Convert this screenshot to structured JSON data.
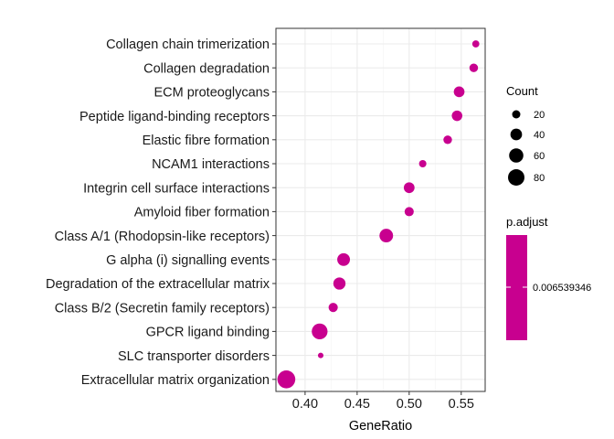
{
  "chart_data": {
    "type": "scatter",
    "title": "",
    "xlabel": "GeneRatio",
    "ylabel": "",
    "xlim": [
      0.372,
      0.573
    ],
    "x_ticks": [
      0.4,
      0.45,
      0.5,
      0.55
    ],
    "x_tick_labels": [
      "0.40",
      "0.45",
      "0.50",
      "0.55"
    ],
    "grid": true,
    "legend_position": "right",
    "point_color": "#c8008f",
    "series": [
      {
        "values": [
          {
            "category": "Collagen chain trimerization",
            "generatio": 0.564,
            "count": 15
          },
          {
            "category": "Collagen degradation",
            "generatio": 0.562,
            "count": 22
          },
          {
            "category": "ECM proteoglycans",
            "generatio": 0.548,
            "count": 34
          },
          {
            "category": "Peptide ligand-binding receptors",
            "generatio": 0.546,
            "count": 33
          },
          {
            "category": "Elastic fibre formation",
            "generatio": 0.537,
            "count": 22
          },
          {
            "category": "NCAM1 interactions",
            "generatio": 0.513,
            "count": 16
          },
          {
            "category": "Integrin cell surface interactions",
            "generatio": 0.5,
            "count": 34
          },
          {
            "category": "Amyloid fiber formation",
            "generatio": 0.5,
            "count": 25
          },
          {
            "category": "Class A/1 (Rhodopsin-like receptors)",
            "generatio": 0.478,
            "count": 55
          },
          {
            "category": "G alpha (i) signalling events",
            "generatio": 0.437,
            "count": 48
          },
          {
            "category": "Degradation of the extracellular matrix",
            "generatio": 0.433,
            "count": 44
          },
          {
            "category": "Class B/2 (Secretin family receptors)",
            "generatio": 0.427,
            "count": 25
          },
          {
            "category": "GPCR ligand binding",
            "generatio": 0.414,
            "count": 74
          },
          {
            "category": "SLC transporter disorders",
            "generatio": 0.415,
            "count": 9
          },
          {
            "category": "Extracellular matrix organization",
            "generatio": 0.382,
            "count": 95
          }
        ]
      }
    ],
    "size_legend": {
      "title": "Count",
      "entries": [
        {
          "label": "20",
          "value": 20
        },
        {
          "label": "40",
          "value": 40
        },
        {
          "label": "60",
          "value": 60
        },
        {
          "label": "80",
          "value": 80
        }
      ]
    },
    "color_legend": {
      "title": "p.adjust",
      "label": "0.006539346",
      "color": "#c8008f"
    }
  }
}
